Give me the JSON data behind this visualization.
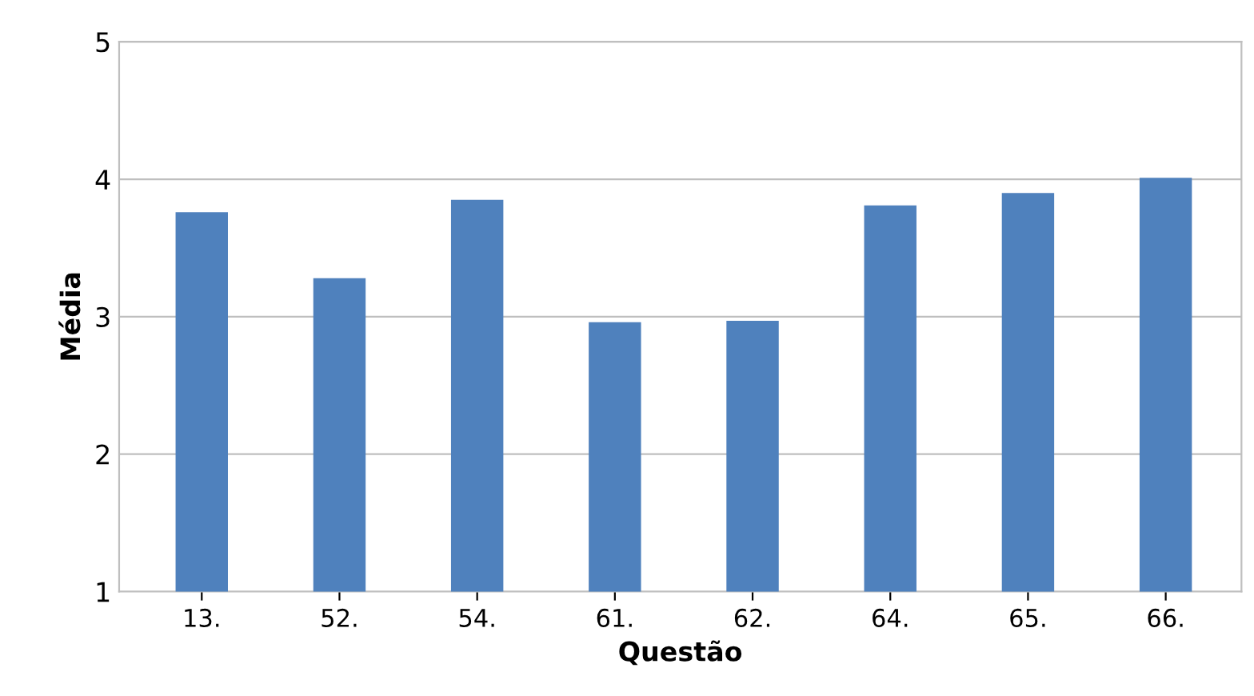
{
  "chart_data": {
    "type": "bar",
    "xlabel": "Questão",
    "ylabel": "Média",
    "categories": [
      "13.",
      "52.",
      "54.",
      "61.",
      "62.",
      "64.",
      "65.",
      "66."
    ],
    "values": [
      3.76,
      3.28,
      3.85,
      2.96,
      2.97,
      3.81,
      3.9,
      4.01
    ],
    "color": "#4f81bd",
    "ylim": [
      1,
      5
    ],
    "yticks": [
      1,
      2,
      3,
      4,
      5
    ],
    "grid": "y",
    "legend": false
  }
}
